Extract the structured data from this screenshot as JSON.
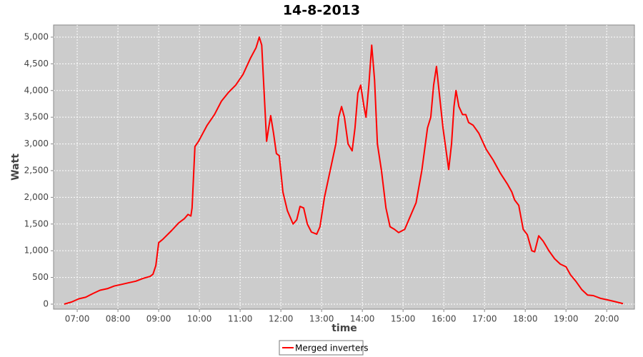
{
  "chart_data": {
    "type": "line",
    "title": "14-8-2013",
    "x_label": "time",
    "y_label": "Watt",
    "x": [
      6.68,
      6.86,
      7.04,
      7.21,
      7.39,
      7.56,
      7.74,
      7.91,
      8.09,
      8.26,
      8.44,
      8.61,
      8.79,
      8.86,
      8.93,
      9.0,
      9.11,
      9.32,
      9.49,
      9.63,
      9.72,
      9.79,
      9.82,
      9.89,
      9.98,
      10.19,
      10.37,
      10.54,
      10.72,
      10.89,
      11.07,
      11.25,
      11.39,
      11.47,
      11.53,
      11.6,
      11.65,
      11.7,
      11.75,
      11.82,
      11.89,
      11.96,
      12.05,
      12.16,
      12.3,
      12.39,
      12.47,
      12.56,
      12.65,
      12.75,
      12.88,
      12.96,
      13.07,
      13.21,
      13.35,
      13.42,
      13.49,
      13.56,
      13.65,
      13.75,
      13.82,
      13.89,
      13.96,
      14.04,
      14.09,
      14.16,
      14.23,
      14.3,
      14.37,
      14.47,
      14.58,
      14.68,
      14.79,
      14.89,
      15.04,
      15.18,
      15.32,
      15.46,
      15.6,
      15.68,
      15.75,
      15.82,
      15.91,
      15.98,
      16.07,
      16.12,
      16.19,
      16.25,
      16.3,
      16.37,
      16.46,
      16.54,
      16.61,
      16.72,
      16.86,
      17.04,
      17.21,
      17.39,
      17.56,
      17.67,
      17.74,
      17.84,
      17.95,
      18.05,
      18.16,
      18.23,
      18.33,
      18.44,
      18.58,
      18.72,
      18.86,
      19.0,
      19.11,
      19.25,
      19.39,
      19.53,
      19.67,
      19.84,
      20.02,
      20.19,
      20.4
    ],
    "series": [
      {
        "name": "Merged inverters",
        "color": "#ff0000",
        "values": [
          0,
          40,
          100,
          130,
          200,
          260,
          290,
          340,
          370,
          400,
          430,
          480,
          520,
          560,
          720,
          1150,
          1220,
          1380,
          1520,
          1600,
          1680,
          1650,
          1800,
          2950,
          3050,
          3350,
          3550,
          3800,
          3970,
          4100,
          4300,
          4600,
          4800,
          5000,
          4850,
          3800,
          3050,
          3300,
          3530,
          3200,
          2820,
          2780,
          2100,
          1750,
          1500,
          1580,
          1830,
          1800,
          1500,
          1350,
          1310,
          1450,
          2000,
          2500,
          3000,
          3500,
          3700,
          3500,
          3000,
          2870,
          3300,
          3950,
          4100,
          3700,
          3500,
          4100,
          4850,
          4200,
          3000,
          2500,
          1800,
          1450,
          1400,
          1340,
          1400,
          1650,
          1900,
          2500,
          3300,
          3500,
          4100,
          4450,
          3800,
          3300,
          2800,
          2520,
          3000,
          3700,
          4000,
          3700,
          3550,
          3550,
          3400,
          3350,
          3200,
          2900,
          2700,
          2450,
          2250,
          2100,
          1950,
          1850,
          1400,
          1300,
          1000,
          980,
          1280,
          1180,
          1000,
          850,
          750,
          700,
          550,
          420,
          270,
          170,
          160,
          110,
          80,
          50,
          10
        ]
      }
    ],
    "xlim": [
      6.42,
      20.68
    ],
    "xticks": [
      {
        "value": 7,
        "label": "07:00"
      },
      {
        "value": 8,
        "label": "08:00"
      },
      {
        "value": 9,
        "label": "09:00"
      },
      {
        "value": 10,
        "label": "10:00"
      },
      {
        "value": 11,
        "label": "11:00"
      },
      {
        "value": 12,
        "label": "12:00"
      },
      {
        "value": 13,
        "label": "13:00"
      },
      {
        "value": 14,
        "label": "14:00"
      },
      {
        "value": 15,
        "label": "15:00"
      },
      {
        "value": 16,
        "label": "16:00"
      },
      {
        "value": 17,
        "label": "17:00"
      },
      {
        "value": 18,
        "label": "18:00"
      },
      {
        "value": 19,
        "label": "19:00"
      },
      {
        "value": 20,
        "label": "20:00"
      }
    ],
    "ylim": [
      -94,
      5227
    ],
    "yticks": [
      0,
      500,
      {
        "value": 1000,
        "label": "1,000"
      },
      {
        "value": 1500,
        "label": "1,500"
      },
      {
        "value": 2000,
        "label": "2,000"
      },
      {
        "value": 2500,
        "label": "2,500"
      },
      {
        "value": 3000,
        "label": "3,000"
      },
      {
        "value": 3500,
        "label": "3,500"
      },
      {
        "value": 4000,
        "label": "4,000"
      },
      {
        "value": 4500,
        "label": "4,500"
      },
      {
        "value": 5000,
        "label": "5,000"
      }
    ],
    "grid": true,
    "legend": "bottom"
  }
}
